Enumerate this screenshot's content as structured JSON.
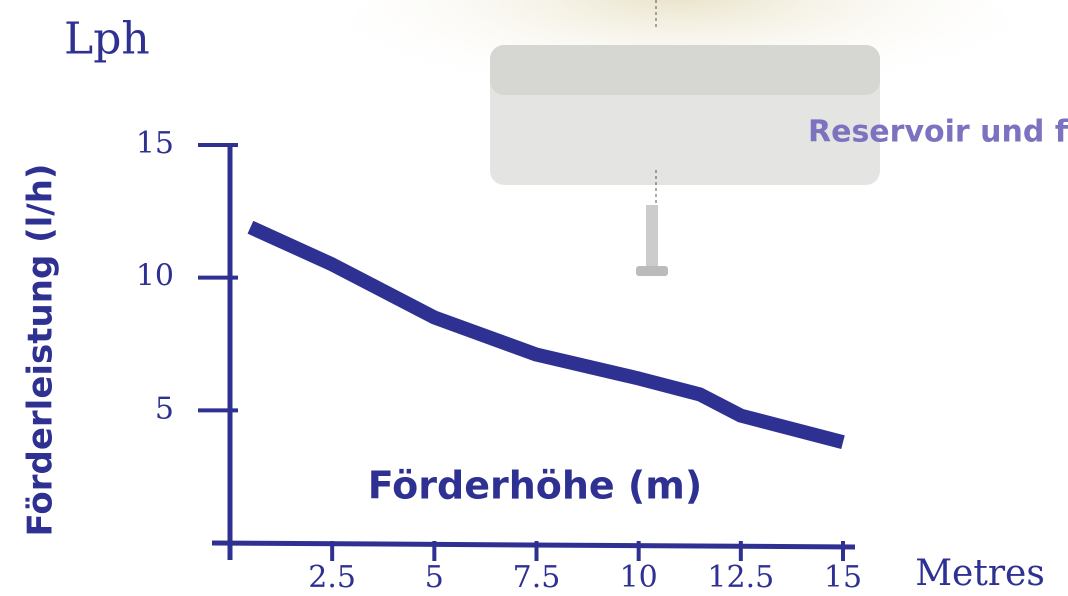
{
  "chart_data": {
    "type": "line",
    "title": "Lph",
    "y_label": "Förderleistung (l/h)",
    "x_label": "Metres",
    "annotations": [
      "Förderhöhe (m)",
      "Reservoir und fi"
    ],
    "x": [
      0.5,
      2.5,
      5,
      7.5,
      10,
      11.5,
      12.5,
      15
    ],
    "series": [
      {
        "name": "Förderleistung",
        "color": "#2e3192",
        "values": [
          11.9,
          10.5,
          8.5,
          7.1,
          6.2,
          5.6,
          4.8,
          3.8
        ]
      }
    ],
    "xlim": [
      0,
      15
    ],
    "xticks": [
      2.5,
      5,
      7.5,
      10,
      12.5,
      15
    ],
    "ylim": [
      0,
      15
    ],
    "yticks": [
      5,
      10,
      15
    ]
  }
}
